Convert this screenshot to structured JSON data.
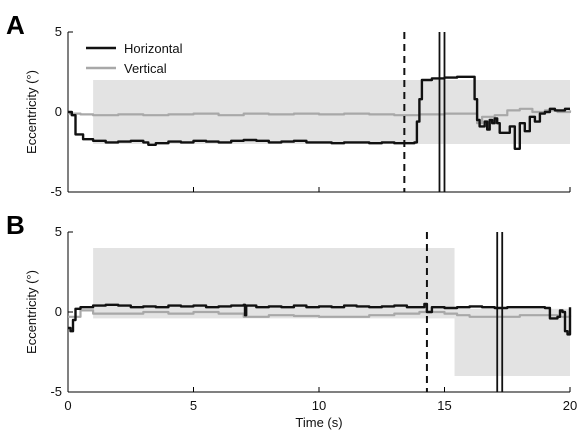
{
  "chart_data": [
    {
      "panel_label": "A",
      "type": "line",
      "xlabel": "",
      "ylabel": "Eccentricity (°)",
      "xlim": [
        0,
        20
      ],
      "ylim": [
        -5,
        5
      ],
      "x_ticks": [
        0,
        5,
        10,
        15,
        20
      ],
      "x_tick_labels_shown": false,
      "y_ticks": [
        -5,
        0,
        5
      ],
      "y_tick_labels": [
        "-5",
        "0",
        "5"
      ],
      "legend": {
        "position": "top-left",
        "entries": [
          {
            "name": "Horizontal",
            "color": "#111111"
          },
          {
            "name": "Vertical",
            "color": "#a8a8a8"
          }
        ]
      },
      "shaded_regions": [
        {
          "x": [
            1.0,
            15.2
          ],
          "y": [
            -2,
            2
          ]
        },
        {
          "x": [
            15.2,
            20.0
          ],
          "y": [
            -2,
            2
          ]
        }
      ],
      "event_lines": [
        {
          "x": 13.4,
          "style": "dashed"
        },
        {
          "x": 14.9,
          "style": "double"
        }
      ],
      "series": [
        {
          "name": "Horizontal",
          "color": "#111111",
          "x": [
            0,
            0.15,
            0.3,
            0.6,
            1.0,
            1.5,
            2.0,
            2.5,
            3.0,
            3.2,
            3.5,
            4.0,
            4.5,
            5.0,
            5.5,
            6.0,
            6.5,
            7.0,
            7.5,
            8.0,
            8.5,
            9.0,
            9.5,
            10.0,
            10.5,
            11.0,
            11.5,
            12.0,
            12.5,
            13.0,
            13.5,
            13.8,
            13.9,
            14.0,
            14.1,
            14.5,
            15.0,
            15.5,
            16.0,
            16.2,
            16.3,
            16.4,
            16.6,
            16.7,
            16.8,
            16.9,
            17.0,
            17.1,
            17.2,
            17.4,
            17.6,
            17.8,
            18.0,
            18.2,
            18.4,
            18.6,
            18.8,
            19.0,
            19.2,
            19.4,
            19.6,
            19.8,
            20.0
          ],
          "values": [
            0,
            -0.2,
            -1.4,
            -1.7,
            -1.8,
            -1.9,
            -1.85,
            -1.8,
            -1.9,
            -2.05,
            -1.95,
            -1.85,
            -1.9,
            -1.8,
            -1.85,
            -1.9,
            -1.8,
            -1.75,
            -1.8,
            -1.9,
            -1.85,
            -1.8,
            -1.9,
            -1.9,
            -1.95,
            -1.9,
            -1.9,
            -1.95,
            -1.9,
            -1.95,
            -1.95,
            -1.9,
            -0.6,
            0.8,
            2.0,
            2.1,
            2.15,
            2.2,
            2.2,
            0.8,
            -0.5,
            -0.9,
            -0.6,
            -1.1,
            -0.5,
            -0.7,
            -0.4,
            -0.7,
            -1.3,
            -1.3,
            -0.9,
            -2.3,
            -0.7,
            -1.2,
            -0.3,
            -0.6,
            -0.1,
            0.0,
            0.2,
            0.1,
            0.1,
            0.2,
            0.2
          ]
        },
        {
          "name": "Vertical",
          "color": "#a8a8a8",
          "x": [
            0,
            0.5,
            1.0,
            2.0,
            3.0,
            4.0,
            5.0,
            6.0,
            7.0,
            8.0,
            9.0,
            10.0,
            11.0,
            12.0,
            13.0,
            14.0,
            15.0,
            15.5,
            16.0,
            16.3,
            16.5,
            17.0,
            17.5,
            18.0,
            18.5,
            19.0,
            19.5,
            20.0
          ],
          "values": [
            -0.1,
            -0.15,
            -0.2,
            -0.15,
            -0.2,
            -0.15,
            -0.1,
            -0.2,
            -0.1,
            -0.15,
            -0.1,
            -0.15,
            -0.1,
            -0.15,
            -0.2,
            -0.15,
            -0.1,
            -0.1,
            -0.1,
            -0.7,
            -0.3,
            -0.2,
            0.1,
            0.2,
            0.0,
            0.1,
            0.0,
            0.1
          ]
        }
      ]
    },
    {
      "panel_label": "B",
      "type": "line",
      "xlabel": "Time (s)",
      "ylabel": "Eccentricity (°)",
      "xlim": [
        0,
        20
      ],
      "ylim": [
        -5,
        5
      ],
      "x_ticks": [
        0,
        5,
        10,
        15,
        20
      ],
      "x_tick_labels": [
        "0",
        "5",
        "10",
        "15",
        "20"
      ],
      "y_ticks": [
        -5,
        0,
        5
      ],
      "y_tick_labels": [
        "-5",
        "0",
        "5"
      ],
      "shaded_regions": [
        {
          "x": [
            1.0,
            15.4
          ],
          "y": [
            -0.4,
            4
          ]
        },
        {
          "x": [
            15.4,
            20.0
          ],
          "y": [
            -4,
            0.2
          ]
        }
      ],
      "event_lines": [
        {
          "x": 14.3,
          "style": "dashed"
        },
        {
          "x": 17.2,
          "style": "double"
        }
      ],
      "series": [
        {
          "name": "Horizontal",
          "color": "#111111",
          "x": [
            0,
            0.1,
            0.2,
            0.3,
            0.5,
            1.0,
            1.5,
            2.0,
            2.5,
            3.0,
            3.5,
            4.0,
            4.5,
            5.0,
            5.5,
            6.0,
            6.5,
            7.0,
            7.05,
            7.1,
            7.5,
            8.0,
            8.5,
            9.0,
            9.5,
            10.0,
            10.5,
            11.0,
            11.5,
            12.0,
            12.5,
            13.0,
            13.5,
            14.0,
            14.2,
            14.3,
            14.5,
            15.0,
            15.5,
            16.0,
            16.5,
            17.0,
            17.5,
            18.0,
            18.5,
            19.0,
            19.2,
            19.5,
            19.6,
            19.7,
            19.8,
            19.9,
            20.0
          ],
          "values": [
            -1.0,
            -1.2,
            -0.5,
            0.2,
            0.3,
            0.4,
            0.45,
            0.4,
            0.3,
            0.35,
            0.3,
            0.4,
            0.35,
            0.4,
            0.3,
            0.35,
            0.4,
            0.45,
            -0.2,
            0.4,
            0.3,
            0.35,
            0.3,
            0.4,
            0.3,
            0.35,
            0.3,
            0.4,
            0.35,
            0.3,
            0.35,
            0.4,
            0.3,
            0.3,
            0.5,
            0.0,
            0.3,
            0.25,
            0.3,
            0.35,
            0.3,
            0.25,
            0.3,
            0.3,
            0.3,
            0.25,
            -0.4,
            -0.3,
            0.1,
            0.0,
            -1.2,
            -1.4,
            0.3
          ]
        },
        {
          "name": "Vertical",
          "color": "#a8a8a8",
          "x": [
            0,
            0.5,
            1.0,
            2.0,
            3.0,
            4.0,
            5.0,
            6.0,
            7.0,
            8.0,
            9.0,
            10.0,
            11.0,
            12.0,
            13.0,
            14.0,
            15.0,
            15.5,
            16.0,
            17.0,
            18.0,
            19.0,
            19.5,
            20.0
          ],
          "values": [
            -0.3,
            0.1,
            -0.1,
            -0.1,
            0.0,
            -0.1,
            0.0,
            -0.1,
            -0.3,
            -0.2,
            -0.25,
            -0.3,
            -0.3,
            -0.2,
            -0.1,
            0.0,
            -0.1,
            -0.2,
            -0.3,
            -0.3,
            -0.2,
            -0.2,
            -0.3,
            -0.2
          ]
        }
      ]
    }
  ]
}
